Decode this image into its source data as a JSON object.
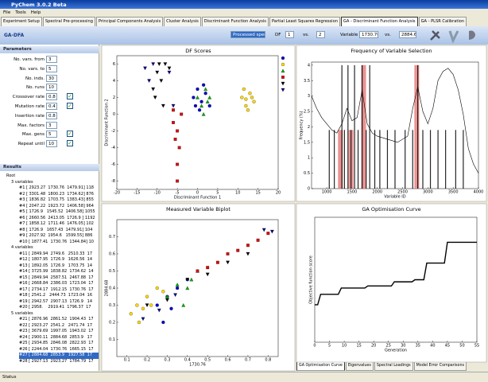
{
  "window": {
    "title": "PyChem 3.0.2 Beta"
  },
  "menu": [
    "File",
    "Tools",
    "Help"
  ],
  "tabs": {
    "items": [
      "Experiment Setup",
      "Spectral Pre-processing",
      "Principal Components Analysis",
      "Cluster Analysis",
      "Discriminant Function Analysis",
      "Partial Least Squares Regression",
      "GA - Discriminant Function Analysis",
      "GA - PLSR Calibration"
    ],
    "active": 6
  },
  "toolbar": {
    "title": "GA-DFA",
    "source": "Processed spec",
    "df_label": "DF",
    "df_x": 1,
    "vs_1": "vs.",
    "df_y": 2,
    "variable_label": "Variable",
    "variable_x": "1730.76",
    "vs_2": "vs.",
    "variable_y": "2884.68"
  },
  "parameters": {
    "header": "Parameters",
    "rows": [
      {
        "label": "No. vars. from",
        "value": 3
      },
      {
        "label": "No. vars. to",
        "value": 5
      },
      {
        "label": "No. inds.",
        "value": 30
      },
      {
        "label": "No. runs",
        "value": 10
      },
      {
        "label": "Crossover rate",
        "value": 0.8,
        "checked": true
      },
      {
        "label": "Mutation rate",
        "value": 0.4,
        "checked": true
      },
      {
        "label": "Insertion rate",
        "value": 0.8
      },
      {
        "label": "Max. factors",
        "value": 3
      },
      {
        "label": "Max. gens",
        "value": 5,
        "checked": true
      },
      {
        "label": "Repeat until",
        "value": 10,
        "checked": true
      }
    ]
  },
  "results": {
    "header": "Results",
    "root": "Root",
    "selected": [
      2,
      6
    ],
    "groups": [
      {
        "label": "3 variables",
        "items": [
          "#1 [ 2923.27  1730.76  1479.91] 118",
          "#2 [ 3301.48  1800.23  1734.62] 876",
          "#3 [ 1836.82  1703.75  1383.43] 855",
          "#4 [ 2047.22  1923.72  1406.58] 964",
          "#5 [ 1726.9   1545.52  1406.58] 1055",
          "#6 [ 2660.56  2413.05  1726.9 ] 1192",
          "#7 [ 1858.12  1711.46  1476.05] 102",
          "#8 [ 1726.9   1657.43  1479.91] 104",
          "#9 [ 2027.92  1954.6   1599.55] 886",
          "#10 [ 1877.41  1730.76  1344.84] 10"
        ]
      },
      {
        "label": "4 variables",
        "items": [
          "#11 [ 2849.94  2749.6   2510.33  17",
          "#12 [ 1807.95  1726.9   1626.56  14",
          "#13 [ 1892.05  1726.9   1703.75  14",
          "#14 [ 3725.99  1838.82  1734.62  14",
          "#15 [ 2849.94  2587.51  2467.88  17",
          "#16 [ 2668.84  2386.03  1723.04  17",
          "#17 [ 2734.17  1912.15  1730.76  17",
          "#18 [ 2541.2   2444.73  1723.04  16",
          "#19 [ 2942.57  2907.13  1726.9   14",
          "#20 [ 2958.    2919.41  1796.37  17"
        ]
      },
      {
        "label": "5 variables",
        "items": [
          "#21 [ 2876.96  2861.52  1904.43  17",
          "#22 [ 2923.27  2541.2   2471.74  17",
          "#23 [ 3679.69  1997.05  1943.02  17",
          "#24 [ 2900.11  2884.68  2853.9   17",
          "#25 [ 2934.85  2846.08  2822.93  17",
          "#26 [ 2244.04  1730.76  1665.15  17",
          "#27 [ 2884.68  2853.9   1927.58  17",
          "#28 [ 2927.13  2923.27  1784.79  17"
        ]
      }
    ]
  },
  "chart_data": [
    {
      "type": "scatter",
      "title": "DF Scores",
      "x_label": "Discriminant Function 1",
      "y_label": "Discriminant Function 2",
      "xlim": [
        -20,
        20
      ],
      "ylim": [
        -9,
        7
      ],
      "xticks": [
        -20,
        -15,
        -10,
        -5,
        0,
        5,
        10,
        15,
        20
      ],
      "yticks": [
        -8,
        -6,
        -4,
        -2,
        0,
        2,
        4,
        6
      ],
      "legend": true,
      "series": [
        {
          "color": "#0000cc",
          "marker": "circle",
          "x": [
            -1,
            0,
            1,
            2,
            3,
            0.5,
            -0.5,
            1.5
          ],
          "values": [
            2,
            3,
            1.5,
            2.5,
            1,
            0.5,
            1,
            3.5
          ]
        },
        {
          "color": "#ffd700",
          "marker": "circle",
          "x": [
            11,
            12,
            13,
            14,
            12.5,
            11.5,
            13.5,
            12
          ],
          "values": [
            2,
            1,
            2.5,
            1.5,
            0.5,
            3,
            2,
            1.8
          ]
        },
        {
          "color": "#00aa00",
          "marker": "triangle-up",
          "x": [
            0,
            1,
            2,
            3,
            1.5,
            2.5
          ],
          "values": [
            2,
            1,
            3,
            2,
            0,
            1.5
          ]
        },
        {
          "color": "#dd0000",
          "marker": "square",
          "x": [
            -6,
            -5,
            -4,
            -5.5,
            -4.5,
            -5,
            -6,
            -5
          ],
          "values": [
            -1,
            -2,
            0,
            -3,
            -4,
            -6,
            0.5,
            -8
          ]
        },
        {
          "color": "#000000",
          "marker": "triangle-down",
          "x": [
            -10,
            -9,
            -11,
            -8,
            -7,
            -10.5,
            -9.5,
            -8.5
          ],
          "values": [
            5,
            4,
            3,
            6,
            5.5,
            2,
            6,
            1
          ]
        },
        {
          "color": "#000080",
          "marker": "triangle-down",
          "x": [
            -12,
            -11,
            -6,
            -7,
            -13
          ],
          "values": [
            4,
            6,
            1,
            5,
            5.5
          ]
        }
      ]
    },
    {
      "type": "combo",
      "title": "Frequency of Variable Selection",
      "x_label": "Variable ID",
      "y_label": "Frequency (%)",
      "xlim": [
        700,
        4000
      ],
      "ylim": [
        0,
        4.1
      ],
      "xticks": [
        1000,
        1500,
        2000,
        2500,
        3000,
        3500,
        4000
      ],
      "yticks": [
        0,
        0.5,
        1,
        1.5,
        2,
        2.5,
        3,
        3.5,
        4
      ],
      "series": [
        {
          "kind": "bar",
          "color": "#e88080",
          "width": 6,
          "x": [
            1270,
            1480,
            1730,
            2780
          ],
          "values": [
            1.9,
            1.9,
            4,
            4
          ]
        },
        {
          "kind": "bar",
          "color": "#000000",
          "width": 1.2,
          "x": [
            1050,
            1150,
            1300,
            1350,
            1420,
            1480,
            1550,
            1620,
            1700,
            1780,
            1850,
            1950,
            2050,
            2200,
            2350,
            2550,
            2700,
            2800,
            2900,
            3050,
            3200,
            3350,
            3550,
            3700
          ],
          "values": [
            1.9,
            1.9,
            4,
            1.9,
            4,
            1.9,
            4,
            1.9,
            4,
            1.9,
            4,
            1.9,
            1.9,
            1.9,
            1.9,
            1.9,
            1.9,
            4,
            1.9,
            1.9,
            1.9,
            1.9,
            1.9,
            1.9
          ]
        },
        {
          "kind": "line",
          "color": "#000000",
          "x": [
            700,
            800,
            900,
            1000,
            1100,
            1200,
            1300,
            1400,
            1500,
            1600,
            1700,
            1800,
            1900,
            2000,
            2200,
            2400,
            2600,
            2700,
            2800,
            2900,
            3000,
            3100,
            3200,
            3300,
            3400,
            3500,
            3600,
            3700,
            3800,
            3900,
            4000
          ],
          "values": [
            3.0,
            2.6,
            2.3,
            2.1,
            1.9,
            1.8,
            2.1,
            2.6,
            2.2,
            2.3,
            3.2,
            2.1,
            1.8,
            1.7,
            1.6,
            1.5,
            1.7,
            2.6,
            3.3,
            2.5,
            2.1,
            2.6,
            3.5,
            3.8,
            3.9,
            3.7,
            3.2,
            2.4,
            1.3,
            0.8,
            0.5
          ]
        }
      ]
    },
    {
      "type": "scatter",
      "title": "Measured Variable Biplot",
      "x_label": "1730.76",
      "y_label": "2884.68",
      "xlim": [
        0.05,
        0.85
      ],
      "ylim": [
        0,
        0.8
      ],
      "xticks": [
        0.1,
        0.2,
        0.3,
        0.4,
        0.5,
        0.6,
        0.7,
        0.8
      ],
      "yticks": [
        0.1,
        0.2,
        0.3,
        0.4,
        0.5,
        0.6,
        0.7
      ],
      "legend": false,
      "series": [
        {
          "color": "#ffd700",
          "marker": "circle",
          "x": [
            0.12,
            0.15,
            0.18,
            0.2,
            0.22,
            0.25,
            0.28,
            0.16
          ],
          "values": [
            0.25,
            0.3,
            0.28,
            0.35,
            0.3,
            0.4,
            0.38,
            0.2
          ]
        },
        {
          "color": "#0000cc",
          "marker": "circle",
          "x": [
            0.25,
            0.3,
            0.35,
            0.4,
            0.32,
            0.28
          ],
          "values": [
            0.3,
            0.35,
            0.4,
            0.45,
            0.28,
            0.2
          ]
        },
        {
          "color": "#00aa00",
          "marker": "triangle-up",
          "x": [
            0.3,
            0.35,
            0.4,
            0.45,
            0.38,
            0.42
          ],
          "values": [
            0.35,
            0.42,
            0.4,
            0.5,
            0.3,
            0.45
          ]
        },
        {
          "color": "#dd0000",
          "marker": "square",
          "x": [
            0.45,
            0.5,
            0.55,
            0.6,
            0.65,
            0.7,
            0.75,
            0.8
          ],
          "values": [
            0.5,
            0.52,
            0.55,
            0.6,
            0.62,
            0.65,
            0.68,
            0.72
          ]
        },
        {
          "color": "#000000",
          "marker": "triangle-down",
          "x": [
            0.2,
            0.3,
            0.4,
            0.5,
            0.6,
            0.7
          ],
          "values": [
            0.3,
            0.33,
            0.45,
            0.48,
            0.55,
            0.6
          ]
        },
        {
          "color": "#000080",
          "marker": "triangle-down",
          "x": [
            0.18,
            0.26,
            0.34,
            0.78,
            0.82
          ],
          "values": [
            0.22,
            0.27,
            0.36,
            0.74,
            0.73
          ]
        }
      ]
    },
    {
      "type": "line",
      "title": "GA Optimisation Curve",
      "x_label": "Generation",
      "y_label": "Objective function score",
      "xlim": [
        0,
        55
      ],
      "ylim": [
        0,
        3000
      ],
      "xticks": [
        0,
        5,
        10,
        15,
        20,
        25,
        30,
        35,
        40,
        45,
        50,
        55
      ],
      "yticks": [],
      "series": [
        {
          "color": "#000000",
          "x": [
            0,
            1,
            2,
            3,
            4,
            5,
            6,
            7,
            8,
            9,
            10,
            11,
            12,
            13,
            14,
            15,
            16,
            17,
            18,
            19,
            20,
            21,
            22,
            23,
            24,
            25,
            26,
            27,
            28,
            29,
            30,
            31,
            32,
            33,
            34,
            35,
            36,
            37,
            38,
            39,
            40,
            41,
            42,
            43,
            44,
            45,
            46,
            47,
            48,
            49,
            50,
            51,
            52,
            53,
            54,
            55
          ],
          "values": [
            900,
            900,
            1150,
            1150,
            1150,
            1150,
            1150,
            1150,
            1150,
            1300,
            1300,
            1300,
            1300,
            1300,
            1300,
            1300,
            1300,
            1300,
            1350,
            1350,
            1350,
            1350,
            1350,
            1350,
            1350,
            1350,
            1350,
            1450,
            1450,
            1450,
            1450,
            1450,
            1450,
            1450,
            1500,
            1500,
            1500,
            1500,
            1900,
            1900,
            1900,
            1900,
            1900,
            1900,
            1900,
            2400,
            2400,
            2400,
            2400,
            2400,
            2400,
            2400,
            2400,
            2400,
            2400,
            2400
          ]
        }
      ]
    }
  ],
  "bottom_tabs": {
    "items": [
      "GA Optimisation Curve",
      "Eigenvalues",
      "Spectral Loadings",
      "Model Error Comparisons"
    ],
    "active": 0
  },
  "status": "Status"
}
